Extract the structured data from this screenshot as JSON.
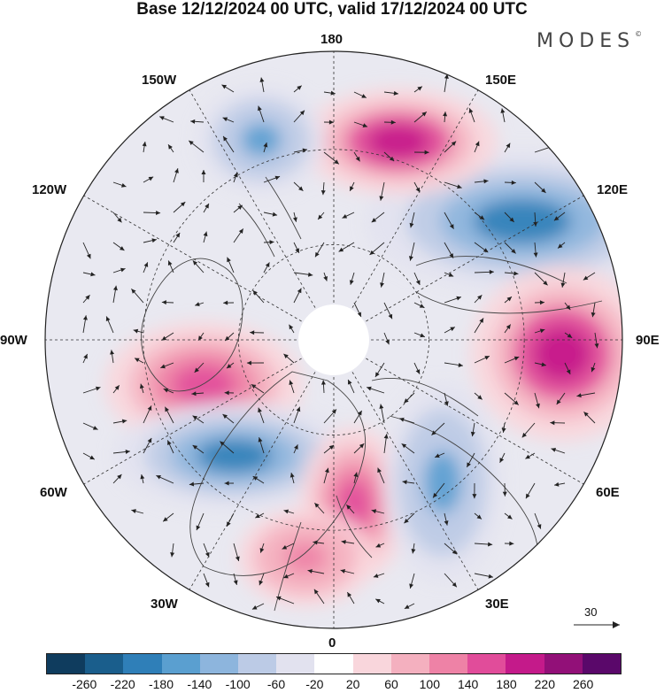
{
  "header": {
    "title": "Base 12/12/2024 00 UTC, valid 17/12/2024 00 UTC",
    "brand": "MODES",
    "brand_mark": "©"
  },
  "map": {
    "projection": "north polar stereographic",
    "lon_labels": {
      "l180": "180",
      "l150e": "150E",
      "l120e": "120E",
      "l90e": "90E",
      "l60e": "60E",
      "l30e": "30E",
      "l0": "0",
      "l30w": "30W",
      "l60w": "60W",
      "l90w": "90W",
      "l120w": "120W",
      "l150w": "150W"
    },
    "reference_vector": "30",
    "anomaly_centres": [
      {
        "region": "east Siberia / 120E",
        "sign": "negative",
        "level": -180
      },
      {
        "region": "Kamchatka / 150E",
        "sign": "positive",
        "level": 220
      },
      {
        "region": "Gulf of Alaska / 150W",
        "sign": "negative",
        "level": -140
      },
      {
        "region": "central Asia / 90E",
        "sign": "positive",
        "level": 220
      },
      {
        "region": "Hudson Bay / 80W",
        "sign": "positive",
        "level": 180
      },
      {
        "region": "Greenland Sea / 45W",
        "sign": "negative",
        "level": -180
      },
      {
        "region": "Scandinavia / 10E",
        "sign": "positive",
        "level": 180
      },
      {
        "region": "Ural / 40E",
        "sign": "negative",
        "level": -140
      },
      {
        "region": "North Atlantic / 20W",
        "sign": "positive",
        "level": 140
      }
    ]
  },
  "colorbar": {
    "ticks": [
      "-260",
      "-220",
      "-180",
      "-140",
      "-100",
      "-60",
      "-20",
      "20",
      "60",
      "100",
      "140",
      "180",
      "220",
      "260"
    ],
    "colors": [
      "#0f3c5e",
      "#1a5e8c",
      "#2f7fb8",
      "#5a9fd0",
      "#8db5dd",
      "#bccbe6",
      "#e2e2ef",
      "#ffffff",
      "#f9d6dc",
      "#f4b0bf",
      "#ee82a6",
      "#e14c9a",
      "#c41a8a",
      "#921078",
      "#5a086a"
    ]
  }
}
